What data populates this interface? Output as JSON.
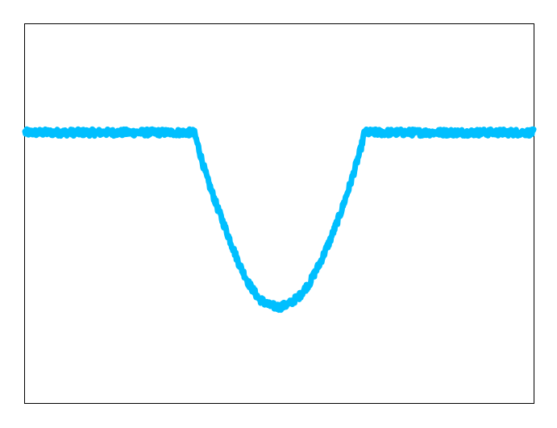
{
  "chart_data": {
    "type": "line",
    "title": "",
    "xlabel": "",
    "ylabel": "",
    "xlim": [
      0,
      1
    ],
    "ylim": [
      0,
      1
    ],
    "grid": false,
    "legend": "none",
    "axis_ticks": "hidden",
    "series": [
      {
        "color": "#00bfff",
        "noise": 0.009,
        "x": [
          0.0,
          0.05,
          0.1,
          0.15,
          0.2,
          0.25,
          0.3,
          0.33,
          0.333,
          0.34,
          0.35,
          0.36,
          0.38,
          0.4,
          0.42,
          0.44,
          0.46,
          0.48,
          0.5,
          0.52,
          0.54,
          0.56,
          0.58,
          0.6,
          0.62,
          0.64,
          0.65,
          0.66,
          0.667,
          0.67,
          0.7,
          0.75,
          0.8,
          0.85,
          0.9,
          0.95,
          1.0
        ],
        "y": [
          0.714,
          0.714,
          0.714,
          0.714,
          0.714,
          0.714,
          0.714,
          0.714,
          0.712,
          0.68,
          0.63,
          0.585,
          0.51,
          0.44,
          0.37,
          0.315,
          0.275,
          0.258,
          0.253,
          0.262,
          0.283,
          0.318,
          0.37,
          0.43,
          0.5,
          0.58,
          0.625,
          0.67,
          0.712,
          0.714,
          0.714,
          0.714,
          0.714,
          0.714,
          0.714,
          0.714,
          0.714
        ]
      }
    ]
  }
}
